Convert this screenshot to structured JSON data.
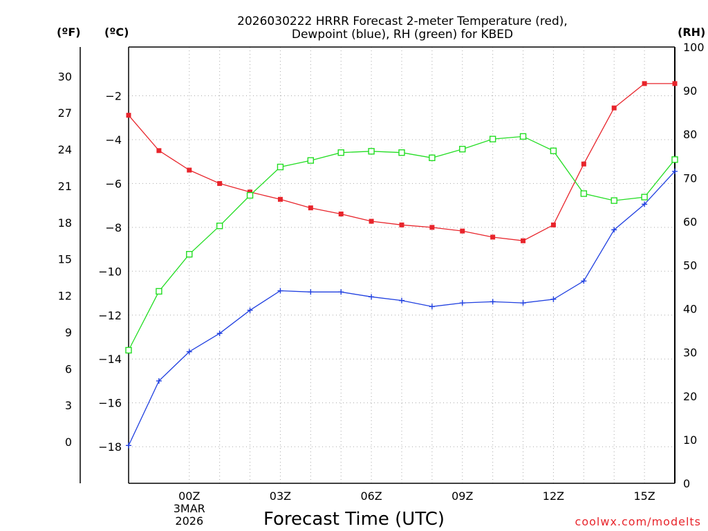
{
  "chart_data": {
    "type": "line",
    "title_line1": "2026030222 HRRR Forecast 2-meter Temperature (red),",
    "title_line2": "Dewpoint (blue), RH (green) for KBED",
    "xlabel": "Forecast Time (UTC)",
    "date_line1": "3MAR",
    "date_line2": "2026",
    "credit": "coolwx.com/modelts",
    "axes": {
      "left_f": {
        "label": "(ºF)",
        "range": [
          -3.4,
          32.4
        ],
        "ticks": [
          0,
          3,
          6,
          9,
          12,
          15,
          18,
          21,
          24,
          27,
          30
        ],
        "tick_labels": [
          "0",
          "3",
          "6",
          "9",
          "12",
          "15",
          "18",
          "21",
          "24",
          "27",
          "30"
        ]
      },
      "left_c": {
        "label": "(ºC)",
        "range": [
          -19.667,
          0.222
        ],
        "ticks": [
          -18,
          -16,
          -14,
          -12,
          -10,
          -8,
          -6,
          -4,
          -2
        ],
        "tick_labels": [
          "−18",
          "−16",
          "−14",
          "−12",
          "−10",
          "−8",
          "−6",
          "−4",
          "−2"
        ]
      },
      "right_rh": {
        "label": "(RH)",
        "range": [
          0,
          100
        ],
        "ticks": [
          0,
          10,
          20,
          30,
          40,
          50,
          60,
          70,
          80,
          90,
          100
        ],
        "tick_labels": [
          "0",
          "10",
          "20",
          "30",
          "40",
          "50",
          "60",
          "70",
          "80",
          "90",
          "100"
        ]
      },
      "x": {
        "range_hours": [
          -2,
          16
        ],
        "tick_hours": [
          0,
          3,
          6,
          9,
          12,
          15
        ],
        "tick_labels": [
          "00Z",
          "03Z",
          "06Z",
          "09Z",
          "12Z",
          "15Z"
        ],
        "grid_hours": [
          0,
          1,
          2,
          3,
          4,
          5,
          6,
          7,
          8,
          9,
          10,
          11,
          12,
          13,
          14,
          15
        ]
      }
    },
    "x_hours": [
      -2,
      -1,
      0,
      1,
      2,
      3,
      4,
      5,
      6,
      7,
      8,
      9,
      10,
      11,
      12,
      13,
      14,
      15,
      16
    ],
    "series": [
      {
        "name": "2-meter Temperature",
        "axis": "left_f",
        "color": "#e8242b",
        "marker": "filled-square",
        "values": [
          26.8,
          23.9,
          22.3,
          21.2,
          20.5,
          19.9,
          19.2,
          18.7,
          18.1,
          17.8,
          17.6,
          17.3,
          16.8,
          16.5,
          17.8,
          22.8,
          27.4,
          29.4,
          29.4
        ]
      },
      {
        "name": "Dewpoint",
        "axis": "left_f",
        "color": "#1f3fe0",
        "marker": "plus",
        "values": [
          -0.3,
          5.0,
          7.4,
          8.9,
          10.8,
          12.4,
          12.3,
          12.3,
          11.9,
          11.6,
          11.1,
          11.4,
          11.5,
          11.4,
          11.7,
          13.2,
          17.4,
          19.5,
          22.2
        ]
      },
      {
        "name": "RH",
        "axis": "right_rh",
        "color": "#22dd22",
        "marker": "open-square",
        "values": [
          30.5,
          44,
          52.5,
          59,
          66,
          72.5,
          74,
          75.8,
          76.1,
          75.8,
          74.6,
          76.6,
          78.9,
          79.5,
          76.2,
          66.4,
          64.8,
          65.6,
          74.2
        ]
      }
    ]
  }
}
